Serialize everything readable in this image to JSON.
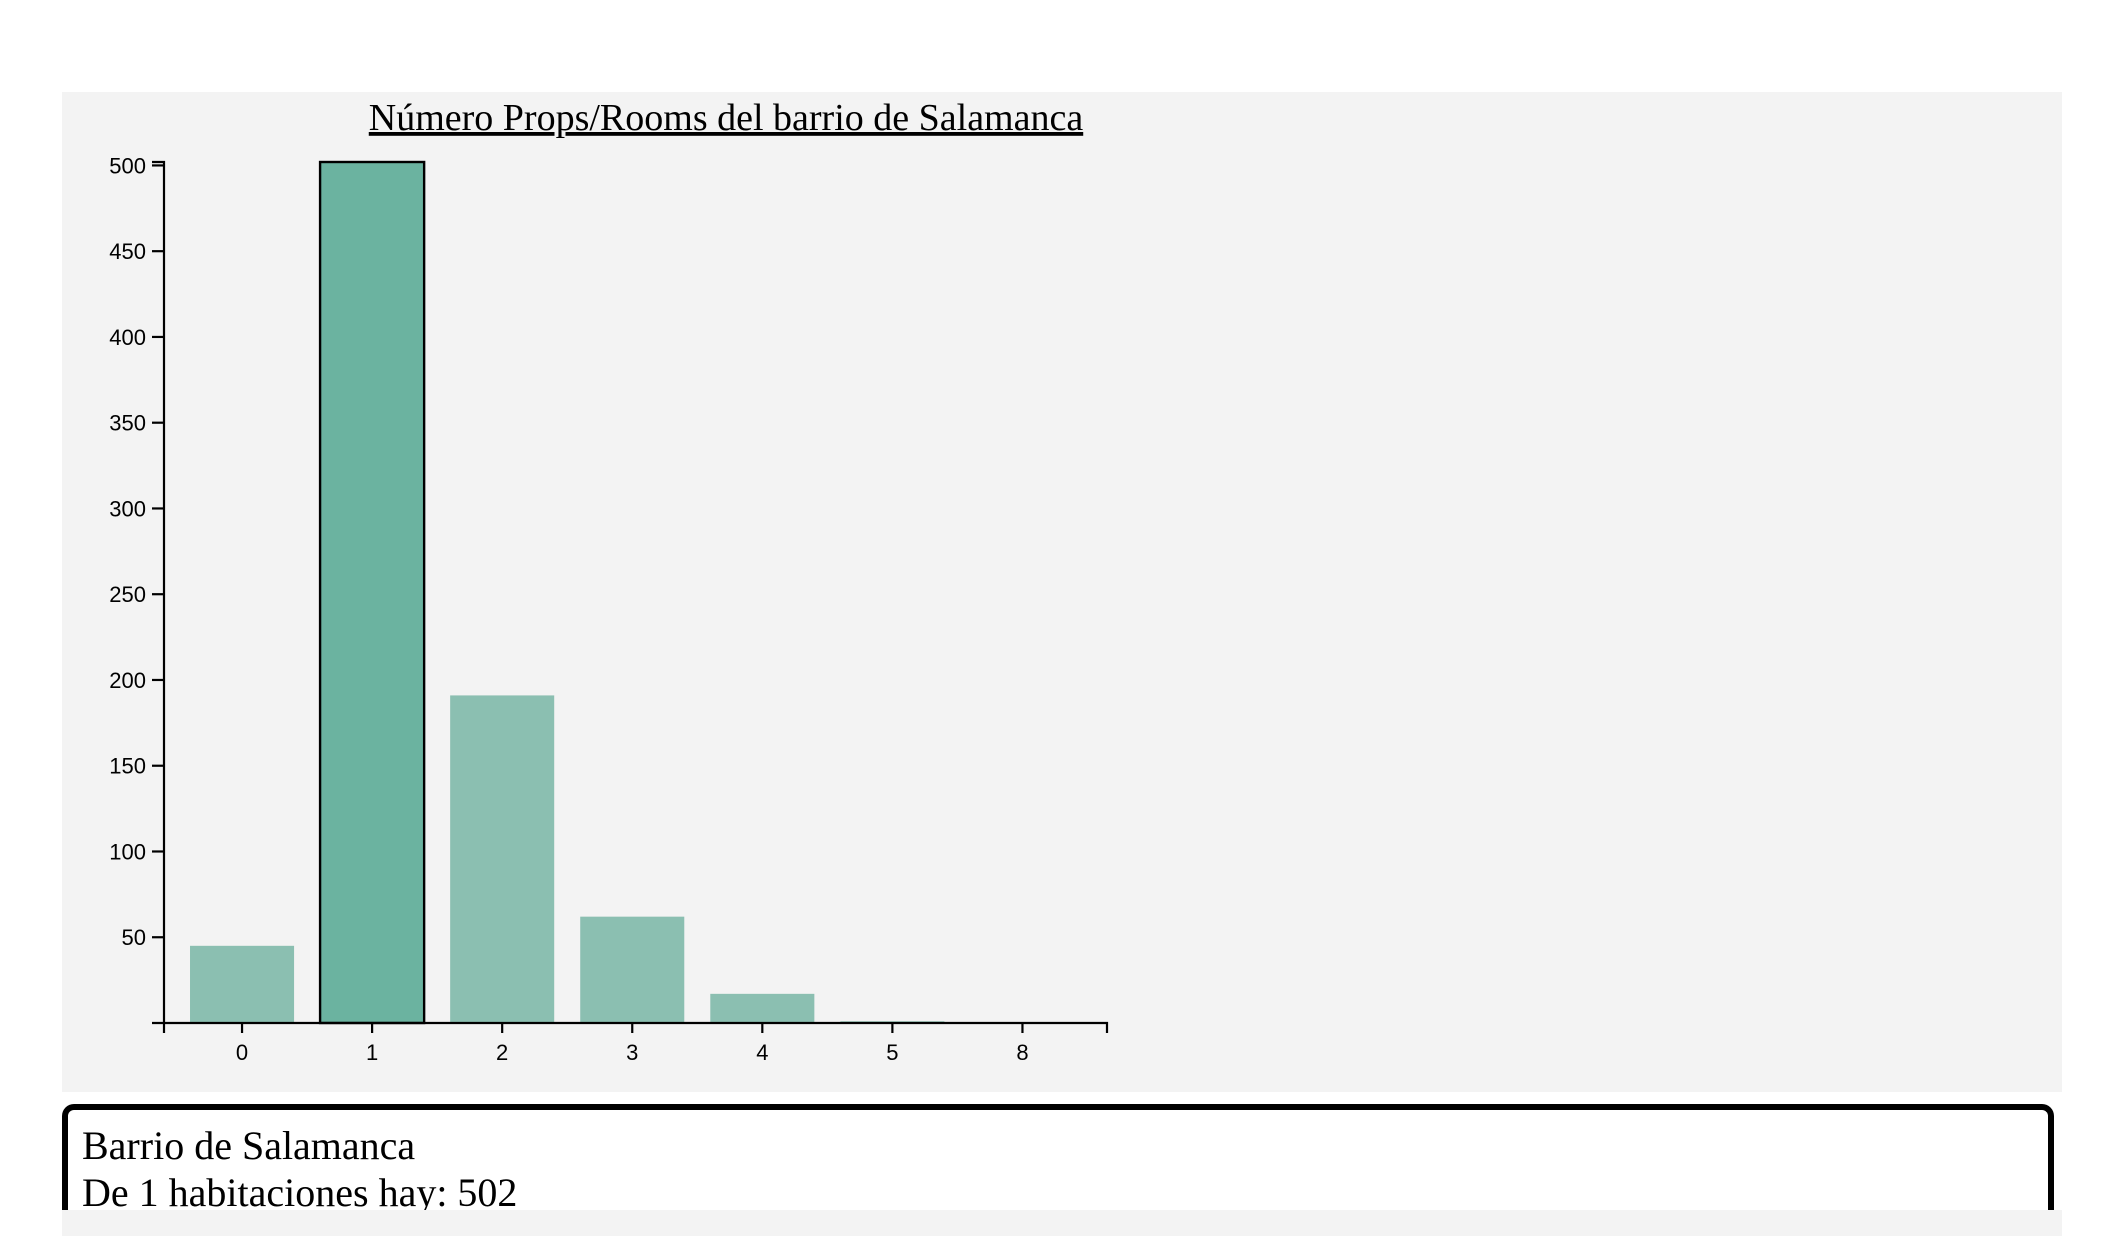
{
  "chart_data": {
    "type": "bar",
    "title": "Número Props/Rooms del barrio de Salamanca",
    "xlabel": "",
    "ylabel": "",
    "categories": [
      "0",
      "1",
      "2",
      "3",
      "4",
      "5",
      "8"
    ],
    "values": [
      45,
      502,
      191,
      62,
      17,
      1,
      0
    ],
    "ylim": [
      0,
      502
    ],
    "yticks": [
      50,
      100,
      150,
      200,
      250,
      300,
      350,
      400,
      450,
      500
    ],
    "highlighted_category": "1",
    "grid": false,
    "colors": {
      "bar": "#8bbfb1",
      "bar_highlight": "#6bb3a0",
      "highlight_outline": "#000000",
      "panel_background": "#f3f3f3"
    }
  },
  "tooltip": {
    "line1": "Barrio de Salamanca",
    "line2": "De 1 habitaciones hay: 502"
  }
}
